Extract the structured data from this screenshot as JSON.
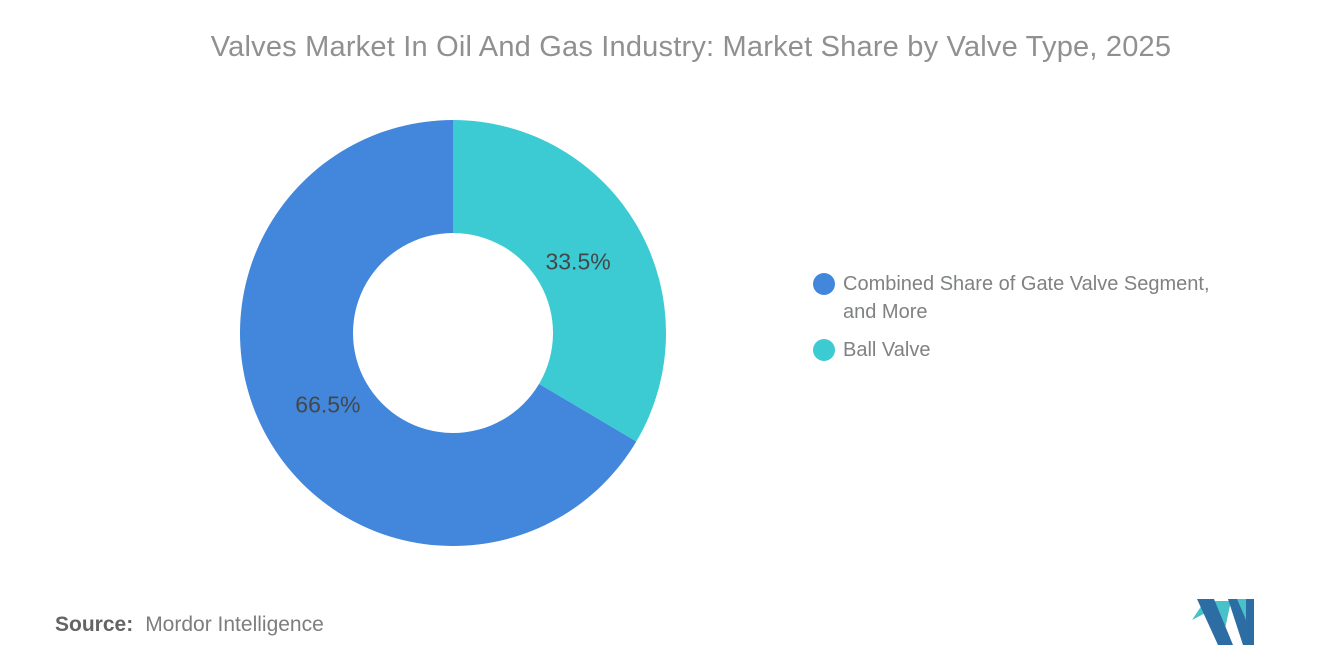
{
  "chart_data": {
    "type": "pie",
    "variant": "donut",
    "title": "Valves Market In Oil And Gas Industry: Market Share by Valve Type, 2025",
    "slices": [
      {
        "label": "Combined Share of Gate Valve Segment, and More",
        "value": 66.5,
        "display": "66.5%",
        "color": "#4287DB"
      },
      {
        "label": "Ball Valve",
        "value": 33.5,
        "display": "33.5%",
        "color": "#3CCBD2"
      }
    ],
    "total": 100,
    "rotation_deg": 120.6,
    "inner_radius_ratio": 0.47,
    "legend_position": "right",
    "value_label_color": "#43474a",
    "background": "#ffffff"
  },
  "source": {
    "label": "Source:",
    "value": "Mordor Intelligence"
  },
  "logo": {
    "name": "mordor-intelligence-logo",
    "navy": "#2C6DA3",
    "teal": "#47C2C8"
  }
}
